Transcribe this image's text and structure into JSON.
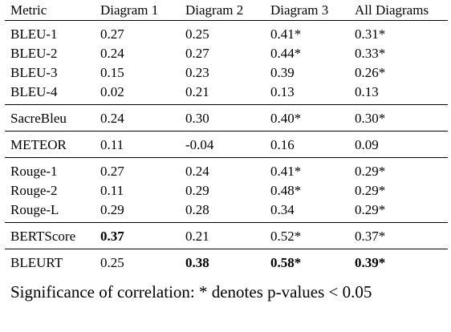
{
  "table": {
    "headers": [
      "Metric",
      "Diagram 1",
      "Diagram 2",
      "Diagram 3",
      "All Diagrams"
    ],
    "groups": [
      [
        {
          "metric": "BLEU-1",
          "d1": "0.27",
          "d2": "0.25",
          "d3": "0.41*",
          "all": "0.31*"
        },
        {
          "metric": "BLEU-2",
          "d1": "0.24",
          "d2": "0.27",
          "d3": "0.44*",
          "all": "0.33*"
        },
        {
          "metric": "BLEU-3",
          "d1": "0.15",
          "d2": "0.23",
          "d3": "0.39",
          "all": "0.26*"
        },
        {
          "metric": "BLEU-4",
          "d1": "0.02",
          "d2": "0.21",
          "d3": "0.13",
          "all": "0.13"
        }
      ],
      [
        {
          "metric": "SacreBleu",
          "d1": "0.24",
          "d2": "0.30",
          "d3": "0.40*",
          "all": "0.30*"
        }
      ],
      [
        {
          "metric": "METEOR",
          "d1": "0.11",
          "d2": "-0.04",
          "d3": "0.16",
          "all": "0.09"
        }
      ],
      [
        {
          "metric": "Rouge-1",
          "d1": "0.27",
          "d2": "0.24",
          "d3": "0.41*",
          "all": "0.29*"
        },
        {
          "metric": "Rouge-2",
          "d1": "0.11",
          "d2": "0.29",
          "d3": "0.48*",
          "all": "0.29*"
        },
        {
          "metric": "Rouge-L",
          "d1": "0.29",
          "d2": "0.28",
          "d3": "0.34",
          "all": "0.29*"
        }
      ],
      [
        {
          "metric": "BERTScore",
          "d1": "0.37",
          "d2": "0.21",
          "d3": "0.52*",
          "all": "0.37*",
          "bold": [
            "d1"
          ]
        }
      ],
      [
        {
          "metric": "BLEURT",
          "d1": "0.25",
          "d2": "0.38",
          "d3": "0.58*",
          "all": "0.39*",
          "bold": [
            "d2",
            "d3",
            "all"
          ]
        }
      ]
    ]
  },
  "caption": "Significance of correlation: * denotes p-values < 0.05"
}
